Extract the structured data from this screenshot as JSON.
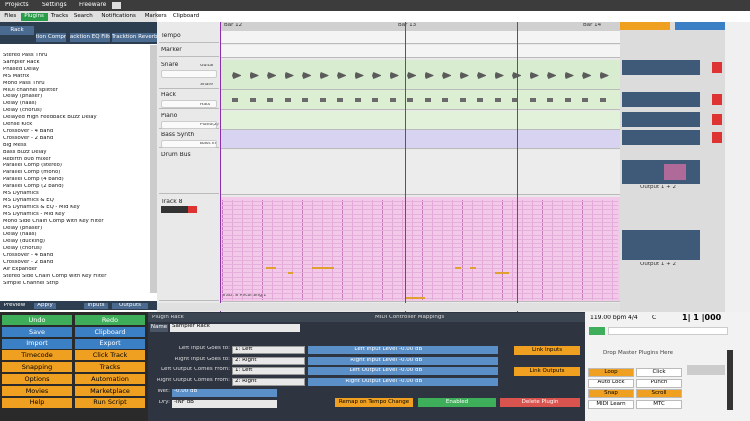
{
  "tabs": [
    "Projects",
    "Settings",
    "Freeware"
  ],
  "browser_tabs": [
    "Files",
    "Plugins",
    "Tracks",
    "Search",
    "Notifications",
    "Markers",
    "Clipboard"
  ],
  "plugin_tabs": [
    "Rack",
    "Tracktion Compressor",
    "Tracktion EQ Filter",
    "Tracktion Reverb"
  ],
  "plugins": [
    "Stereo Pass Thru",
    "Sampler Rack",
    "Phased Delay",
    "MS Matrix",
    "Mono Pass Thru",
    "MIDI channel splitter",
    "Delay (phaser)",
    "Delay (haas)",
    "Delay (chorus)",
    "Delayed High Feedback Buzz Delay",
    "Dense Kick",
    "Crossover - 4 Band",
    "Crossover - 2 Band",
    "Big Mess",
    "Bass Buzz Delay",
    "Rebirth 808 mixer",
    "Parallel Comp (stereo)",
    "Parallel Comp (mono)",
    "Parallel Comp (4 band)",
    "Parallel Comp (2 band)",
    "MS Dynamics",
    "MS Dynamics & EQ",
    "MS Dynamics & EQ - Mid Key",
    "MS Dynamics - Mid Key",
    "Mono Side Chain Comp with Key Filter",
    "Delay (phaser)",
    "Delay (haas)",
    "Delay (ducking)",
    "Delay (chorus)",
    "Crossover - 4 Band",
    "Crossover - 2 Band",
    "Air Expander",
    "Stereo Side Chain Comp with Key Filter",
    "Simple Channel Strip"
  ],
  "browser_footer": [
    "Preview",
    "Apply",
    "Inputs",
    "Outputs"
  ],
  "buttons": [
    "Undo",
    "Redo",
    "Save",
    "Clipboard",
    "Import",
    "Export",
    "Timecode",
    "Click Track",
    "Snapping",
    "Tracks",
    "Options",
    "Automation",
    "Movies",
    "Marketplace",
    "Help",
    "Run Script"
  ],
  "bars": [
    "Bar 12",
    "Bar 13",
    "Bar 14"
  ],
  "tracks": [
    "Tempo",
    "Marker",
    "Snare",
    "Hack",
    "Piano",
    "Bass Synth",
    "Drum Bus",
    "Track 8"
  ],
  "clips": [
    "Guitar",
    "Snare",
    "Hats",
    "Piano(2)",
    "Bass In",
    "Track 8 Recording 1"
  ],
  "outputs": [
    "Output 1 + 2",
    "Output 1 + 2"
  ],
  "rack": {
    "title": "Plugin Rack",
    "midi_title": "MIDI Controller Mappings",
    "name_label": "Name",
    "name": "Sampler Rack",
    "routing": [
      [
        "Left Input Goes to:",
        "1: Left"
      ],
      [
        "Right Input Goes to:",
        "2: Right"
      ],
      [
        "Left Output Comes From:",
        "1: Left"
      ],
      [
        "Right Output Comes From:",
        "2: Right"
      ]
    ],
    "levels": [
      [
        "Left Input Level",
        "-0.00 dB"
      ],
      [
        "Right Input Level",
        "-0.00 dB"
      ],
      [
        "Left Output Level",
        "-0.00 dB"
      ],
      [
        "Right Output Level",
        "-0.00 dB"
      ]
    ],
    "link_inputs": "Link Inputs",
    "link_outputs": "Link Outputs",
    "wet_label": "Wet:",
    "wet": "-0.00 dB",
    "dry_label": "Dry:",
    "dry": "-INF dB",
    "remap": "Remap on Tempo Change",
    "enabled": "Enabled",
    "delete": "Delete Plugin"
  },
  "transport": {
    "tempo": "119.00 bpm",
    "signature": "4/4",
    "key": "C",
    "position": "1| 1 |000",
    "master": "Drop Master Plugins Here",
    "buttons": [
      "Loop",
      "Click",
      "Auto Lock",
      "Punch",
      "Snap",
      "Scroll",
      "MIDI Learn",
      "MTC"
    ]
  }
}
